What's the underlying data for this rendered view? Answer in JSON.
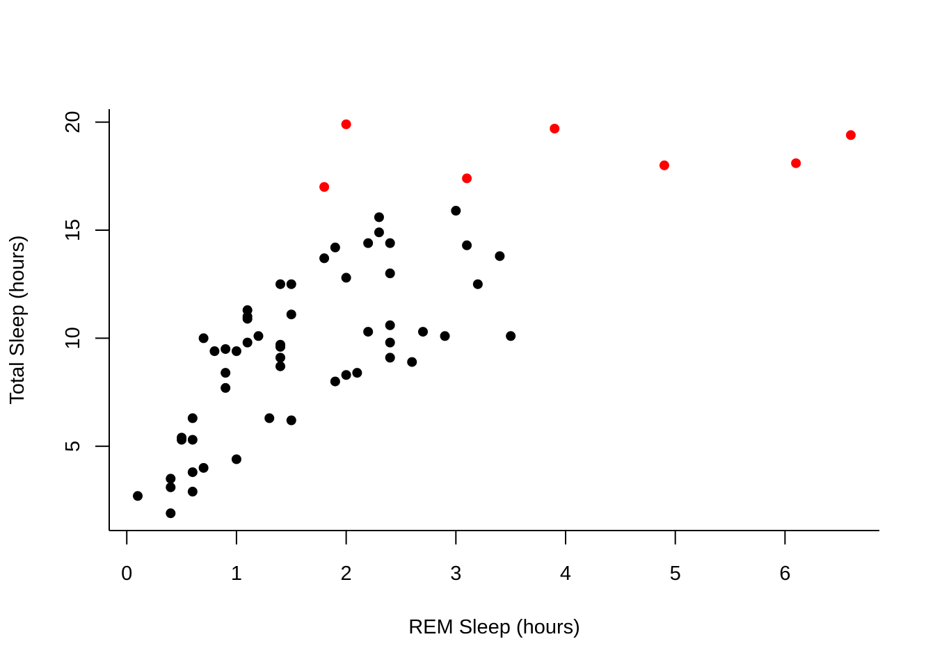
{
  "chart_data": {
    "type": "scatter",
    "title": "",
    "xlabel": "REM Sleep (hours)",
    "ylabel": "Total Sleep (hours)",
    "xlim": [
      -0.16,
      6.86
    ],
    "ylim": [
      1.1,
      20.6
    ],
    "x_ticks": [
      0,
      1,
      2,
      3,
      4,
      5,
      6
    ],
    "y_ticks": [
      5,
      10,
      15,
      20
    ],
    "grid": false,
    "legend": "none",
    "colors": {
      "default": "#000000",
      "highlight": "#ff0000"
    },
    "series": [
      {
        "color": "#000000",
        "points": [
          [
            0.1,
            2.7
          ],
          [
            0.4,
            1.9
          ],
          [
            0.4,
            3.1
          ],
          [
            0.4,
            3.5
          ],
          [
            0.5,
            5.3
          ],
          [
            0.5,
            5.4
          ],
          [
            0.6,
            2.9
          ],
          [
            0.6,
            3.8
          ],
          [
            0.6,
            5.3
          ],
          [
            0.6,
            6.3
          ],
          [
            0.7,
            4.0
          ],
          [
            0.7,
            10.0
          ],
          [
            0.8,
            9.4
          ],
          [
            0.9,
            7.7
          ],
          [
            0.9,
            8.4
          ],
          [
            0.9,
            9.5
          ],
          [
            1.0,
            4.4
          ],
          [
            1.0,
            9.4
          ],
          [
            1.1,
            9.8
          ],
          [
            1.1,
            10.9
          ],
          [
            1.1,
            11.0
          ],
          [
            1.1,
            11.3
          ],
          [
            1.2,
            10.1
          ],
          [
            1.3,
            6.3
          ],
          [
            1.4,
            8.7
          ],
          [
            1.4,
            9.1
          ],
          [
            1.4,
            9.6
          ],
          [
            1.4,
            9.7
          ],
          [
            1.4,
            12.5
          ],
          [
            1.5,
            6.2
          ],
          [
            1.5,
            11.1
          ],
          [
            1.5,
            12.5
          ],
          [
            1.8,
            13.7
          ],
          [
            1.9,
            8.0
          ],
          [
            1.9,
            14.2
          ],
          [
            2.0,
            8.3
          ],
          [
            2.0,
            12.8
          ],
          [
            2.1,
            8.4
          ],
          [
            2.2,
            10.3
          ],
          [
            2.2,
            14.4
          ],
          [
            2.3,
            14.9
          ],
          [
            2.3,
            15.6
          ],
          [
            2.4,
            9.1
          ],
          [
            2.4,
            9.8
          ],
          [
            2.4,
            10.6
          ],
          [
            2.4,
            13.0
          ],
          [
            2.4,
            14.4
          ],
          [
            2.6,
            8.9
          ],
          [
            2.7,
            10.3
          ],
          [
            2.9,
            10.1
          ],
          [
            3.0,
            15.9
          ],
          [
            3.1,
            14.3
          ],
          [
            3.2,
            12.5
          ],
          [
            3.4,
            13.8
          ],
          [
            3.5,
            10.1
          ]
        ]
      },
      {
        "color": "#ff0000",
        "points": [
          [
            1.8,
            17.0
          ],
          [
            2.0,
            19.9
          ],
          [
            3.1,
            17.4
          ],
          [
            3.9,
            19.7
          ],
          [
            4.9,
            18.0
          ],
          [
            6.1,
            18.1
          ],
          [
            6.6,
            19.4
          ]
        ]
      }
    ]
  }
}
